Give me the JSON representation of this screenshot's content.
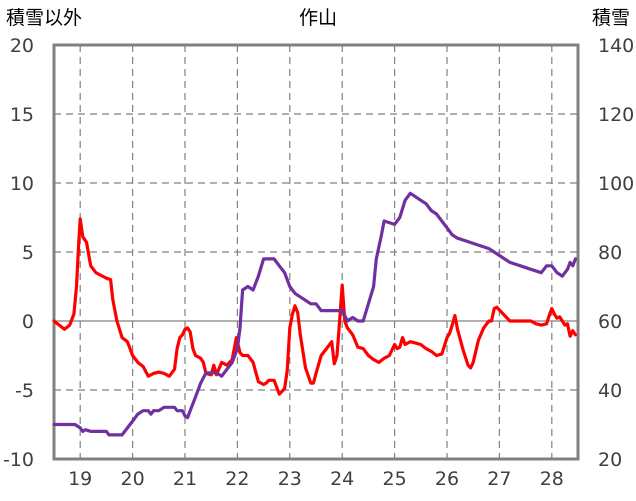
{
  "chart_data": {
    "type": "line",
    "title": "作山",
    "ylabel": "積雪以外",
    "y2label": "積雪",
    "xlim": [
      18.5,
      28.5
    ],
    "ylim": [
      -10,
      20
    ],
    "y2lim": [
      20,
      140
    ],
    "x_ticks": [
      19,
      20,
      21,
      22,
      23,
      24,
      25,
      26,
      27,
      28
    ],
    "y_ticks": [
      -10,
      -5,
      0,
      5,
      10,
      15,
      20
    ],
    "y2_ticks": [
      20,
      40,
      60,
      80,
      100,
      120,
      140
    ],
    "grid": true,
    "colors": {
      "temperature": "#ff0000",
      "snow": "#7030a0",
      "axis": "#808080",
      "grid": "#808080"
    },
    "series": [
      {
        "axis": "left",
        "color": "#ff0000",
        "points": [
          [
            18.5,
            0.0
          ],
          [
            18.6,
            -0.3
          ],
          [
            18.7,
            -0.6
          ],
          [
            18.8,
            -0.3
          ],
          [
            18.88,
            0.5
          ],
          [
            18.93,
            2.5
          ],
          [
            18.97,
            5.5
          ],
          [
            19.0,
            7.4
          ],
          [
            19.05,
            6.1
          ],
          [
            19.12,
            5.7
          ],
          [
            19.2,
            4.0
          ],
          [
            19.3,
            3.5
          ],
          [
            19.4,
            3.3
          ],
          [
            19.5,
            3.1
          ],
          [
            19.58,
            3.0
          ],
          [
            19.62,
            1.6
          ],
          [
            19.7,
            0.0
          ],
          [
            19.8,
            -1.2
          ],
          [
            19.9,
            -1.5
          ],
          [
            20.0,
            -2.5
          ],
          [
            20.1,
            -3.0
          ],
          [
            20.2,
            -3.3
          ],
          [
            20.3,
            -4.0
          ],
          [
            20.4,
            -3.8
          ],
          [
            20.5,
            -3.7
          ],
          [
            20.6,
            -3.8
          ],
          [
            20.7,
            -4.0
          ],
          [
            20.8,
            -3.5
          ],
          [
            20.85,
            -2.0
          ],
          [
            20.9,
            -1.2
          ],
          [
            20.95,
            -1.0
          ],
          [
            21.0,
            -0.6
          ],
          [
            21.05,
            -0.5
          ],
          [
            21.1,
            -0.8
          ],
          [
            21.15,
            -2.0
          ],
          [
            21.2,
            -2.5
          ],
          [
            21.3,
            -2.7
          ],
          [
            21.35,
            -3.0
          ],
          [
            21.4,
            -3.8
          ],
          [
            21.5,
            -3.9
          ],
          [
            21.55,
            -3.2
          ],
          [
            21.6,
            -3.9
          ],
          [
            21.7,
            -3.0
          ],
          [
            21.8,
            -3.2
          ],
          [
            21.9,
            -2.8
          ],
          [
            21.98,
            -1.2
          ],
          [
            22.05,
            -2.3
          ],
          [
            22.1,
            -2.5
          ],
          [
            22.2,
            -2.5
          ],
          [
            22.3,
            -3.0
          ],
          [
            22.4,
            -4.4
          ],
          [
            22.5,
            -4.6
          ],
          [
            22.55,
            -4.5
          ],
          [
            22.6,
            -4.3
          ],
          [
            22.7,
            -4.3
          ],
          [
            22.8,
            -5.3
          ],
          [
            22.9,
            -4.9
          ],
          [
            22.95,
            -3.6
          ],
          [
            23.0,
            -0.5
          ],
          [
            23.05,
            0.5
          ],
          [
            23.1,
            1.1
          ],
          [
            23.15,
            0.6
          ],
          [
            23.2,
            -1.0
          ],
          [
            23.3,
            -3.4
          ],
          [
            23.4,
            -4.5
          ],
          [
            23.45,
            -4.5
          ],
          [
            23.5,
            -3.8
          ],
          [
            23.6,
            -2.5
          ],
          [
            23.7,
            -2.0
          ],
          [
            23.8,
            -1.5
          ],
          [
            23.85,
            -3.1
          ],
          [
            23.9,
            -2.5
          ],
          [
            23.95,
            0.0
          ],
          [
            24.0,
            2.6
          ],
          [
            24.05,
            0.0
          ],
          [
            24.1,
            -0.5
          ],
          [
            24.2,
            -1.0
          ],
          [
            24.3,
            -1.9
          ],
          [
            24.4,
            -2.0
          ],
          [
            24.5,
            -2.5
          ],
          [
            24.6,
            -2.8
          ],
          [
            24.7,
            -3.0
          ],
          [
            24.8,
            -2.7
          ],
          [
            24.9,
            -2.5
          ],
          [
            25.0,
            -1.7
          ],
          [
            25.05,
            -2.0
          ],
          [
            25.1,
            -1.9
          ],
          [
            25.15,
            -1.2
          ],
          [
            25.2,
            -1.7
          ],
          [
            25.3,
            -1.5
          ],
          [
            25.4,
            -1.6
          ],
          [
            25.5,
            -1.7
          ],
          [
            25.6,
            -2.0
          ],
          [
            25.7,
            -2.2
          ],
          [
            25.8,
            -2.5
          ],
          [
            25.9,
            -2.4
          ],
          [
            26.0,
            -1.2
          ],
          [
            26.05,
            -0.9
          ],
          [
            26.1,
            -0.3
          ],
          [
            26.15,
            0.4
          ],
          [
            26.2,
            -0.6
          ],
          [
            26.3,
            -2.0
          ],
          [
            26.4,
            -3.2
          ],
          [
            26.45,
            -3.4
          ],
          [
            26.5,
            -3.0
          ],
          [
            26.6,
            -1.4
          ],
          [
            26.7,
            -0.5
          ],
          [
            26.8,
            0.0
          ],
          [
            26.85,
            0.0
          ],
          [
            26.9,
            0.9
          ],
          [
            26.95,
            1.0
          ],
          [
            27.0,
            0.8
          ],
          [
            27.1,
            0.4
          ],
          [
            27.2,
            0.0
          ],
          [
            27.4,
            0.0
          ],
          [
            27.6,
            0.0
          ],
          [
            27.7,
            -0.2
          ],
          [
            27.8,
            -0.3
          ],
          [
            27.9,
            -0.2
          ],
          [
            27.95,
            0.4
          ],
          [
            28.0,
            0.9
          ],
          [
            28.05,
            0.5
          ],
          [
            28.1,
            0.2
          ],
          [
            28.15,
            0.3
          ],
          [
            28.25,
            -0.3
          ],
          [
            28.3,
            -0.2
          ],
          [
            28.35,
            -1.1
          ],
          [
            28.4,
            -0.7
          ],
          [
            28.45,
            -1.0
          ]
        ]
      },
      {
        "axis": "right",
        "color": "#7030a0",
        "points": [
          [
            18.5,
            30
          ],
          [
            18.9,
            30
          ],
          [
            19.0,
            29
          ],
          [
            19.05,
            28
          ],
          [
            19.1,
            28.5
          ],
          [
            19.2,
            28
          ],
          [
            19.5,
            28
          ],
          [
            19.55,
            27
          ],
          [
            19.8,
            27
          ],
          [
            19.9,
            29
          ],
          [
            20.0,
            31
          ],
          [
            20.1,
            33
          ],
          [
            20.2,
            34
          ],
          [
            20.3,
            34
          ],
          [
            20.35,
            33
          ],
          [
            20.4,
            34
          ],
          [
            20.5,
            34
          ],
          [
            20.6,
            35
          ],
          [
            20.7,
            35
          ],
          [
            20.8,
            35
          ],
          [
            20.85,
            34
          ],
          [
            20.95,
            34
          ],
          [
            21.0,
            32.5
          ],
          [
            21.05,
            32
          ],
          [
            21.1,
            34
          ],
          [
            21.2,
            38
          ],
          [
            21.3,
            42
          ],
          [
            21.4,
            45
          ],
          [
            21.5,
            45
          ],
          [
            21.6,
            45
          ],
          [
            21.7,
            44
          ],
          [
            21.8,
            46
          ],
          [
            21.9,
            48
          ],
          [
            22.0,
            52
          ],
          [
            22.05,
            58
          ],
          [
            22.1,
            69
          ],
          [
            22.2,
            70
          ],
          [
            22.3,
            69
          ],
          [
            22.4,
            73
          ],
          [
            22.5,
            78
          ],
          [
            22.6,
            78
          ],
          [
            22.7,
            78
          ],
          [
            22.8,
            76
          ],
          [
            22.9,
            74
          ],
          [
            23.0,
            70
          ],
          [
            23.1,
            68
          ],
          [
            23.2,
            67
          ],
          [
            23.3,
            66
          ],
          [
            23.4,
            65
          ],
          [
            23.5,
            65
          ],
          [
            23.6,
            63
          ],
          [
            23.7,
            63
          ],
          [
            23.8,
            63
          ],
          [
            24.0,
            63
          ],
          [
            24.1,
            60
          ],
          [
            24.2,
            61
          ],
          [
            24.3,
            60
          ],
          [
            24.4,
            60
          ],
          [
            24.5,
            65
          ],
          [
            24.6,
            70
          ],
          [
            24.65,
            78
          ],
          [
            24.75,
            85
          ],
          [
            24.8,
            89
          ],
          [
            25.0,
            88
          ],
          [
            25.1,
            90
          ],
          [
            25.2,
            95
          ],
          [
            25.3,
            97
          ],
          [
            25.4,
            96
          ],
          [
            25.5,
            95
          ],
          [
            25.6,
            94
          ],
          [
            25.7,
            92
          ],
          [
            25.8,
            91
          ],
          [
            25.9,
            89
          ],
          [
            26.0,
            87
          ],
          [
            26.1,
            85
          ],
          [
            26.2,
            84
          ],
          [
            26.4,
            83
          ],
          [
            26.6,
            82
          ],
          [
            26.8,
            81
          ],
          [
            27.0,
            79
          ],
          [
            27.2,
            77
          ],
          [
            27.4,
            76
          ],
          [
            27.6,
            75
          ],
          [
            27.8,
            74
          ],
          [
            27.9,
            76
          ],
          [
            28.0,
            76
          ],
          [
            28.1,
            74
          ],
          [
            28.2,
            73
          ],
          [
            28.3,
            75
          ],
          [
            28.35,
            77
          ],
          [
            28.4,
            76
          ],
          [
            28.45,
            78
          ]
        ]
      }
    ]
  }
}
